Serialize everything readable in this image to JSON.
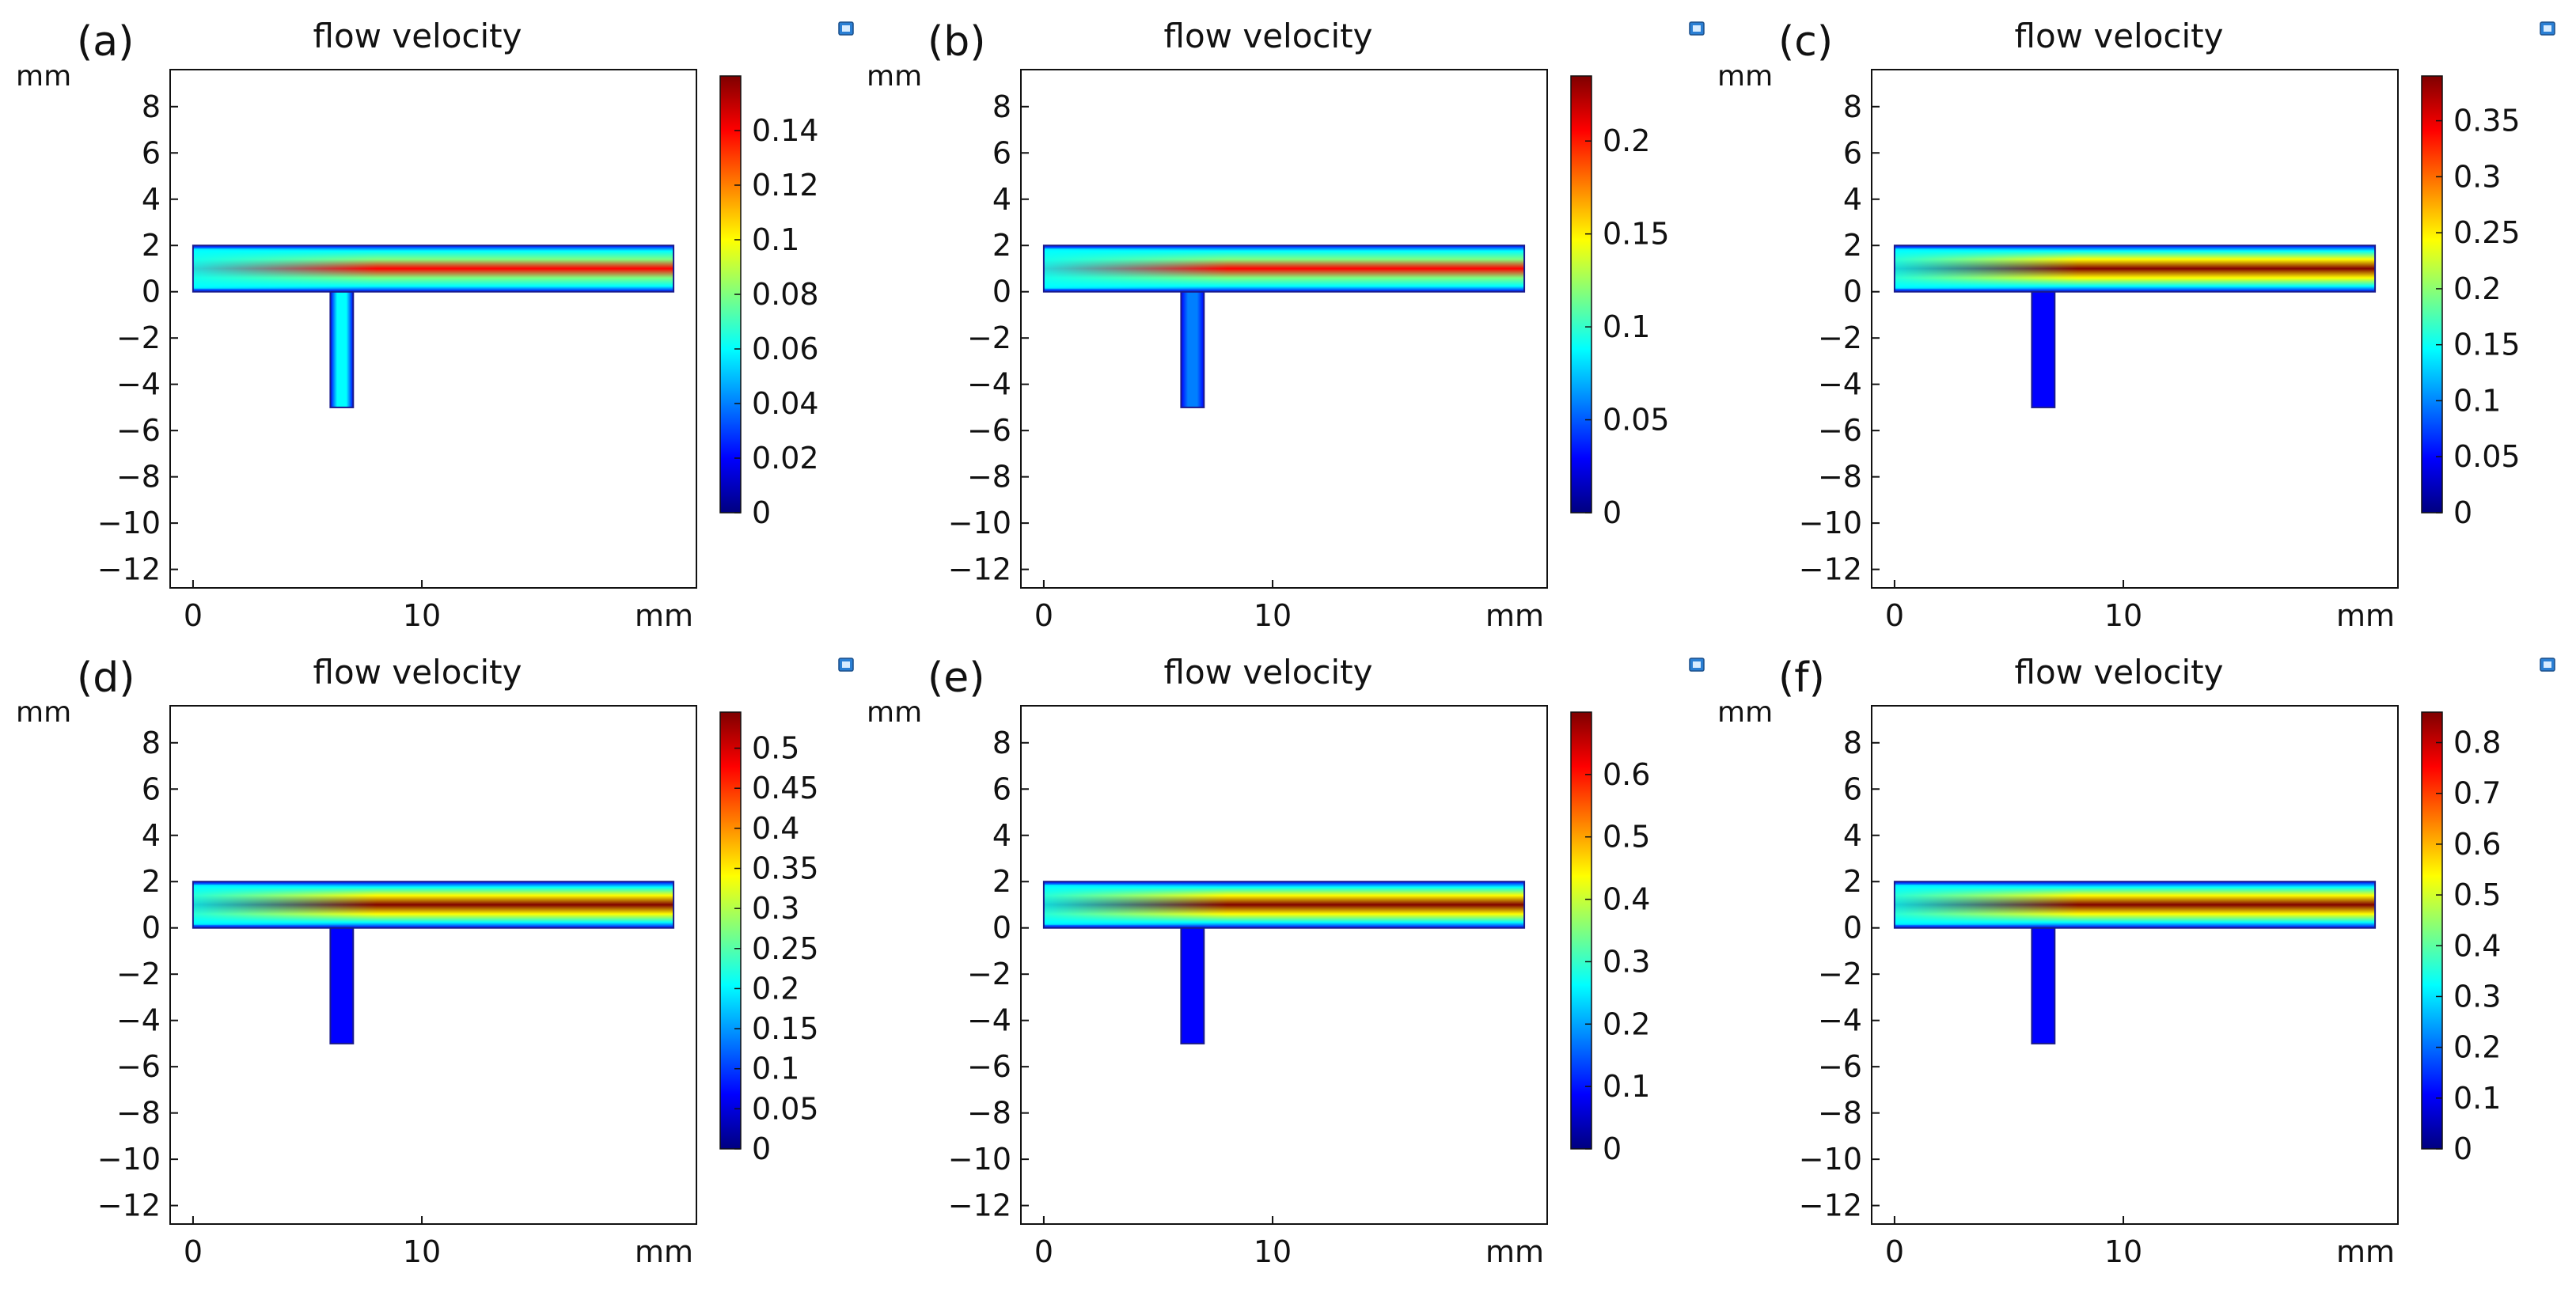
{
  "chart_data": [
    {
      "type": "heatmap",
      "panel_label": "(a)",
      "title": "flow velocity",
      "xlabel": "mm",
      "ylabel": "mm",
      "xticks": [
        "0",
        "10"
      ],
      "yticks": [
        "8",
        "6",
        "4",
        "2",
        "0",
        "−2",
        "−4",
        "−6",
        "−8",
        "−10",
        "−12"
      ],
      "xlim": [
        -1,
        22
      ],
      "ylim": [
        -12.8,
        9.6
      ],
      "colorbar": {
        "min": 0,
        "max": 0.16,
        "ticks": [
          "0",
          "0.02",
          "0.04",
          "0.06",
          "0.08",
          "0.1",
          "0.12",
          "0.14"
        ],
        "tick_values": [
          0,
          0.02,
          0.04,
          0.06,
          0.08,
          0.1,
          0.12,
          0.14
        ]
      },
      "geometry": {
        "main_channel": {
          "x": [
            0,
            21
          ],
          "y": [
            0,
            2
          ]
        },
        "side_channel": {
          "x": [
            6,
            7
          ],
          "y": [
            -5,
            0
          ]
        }
      },
      "peak_velocity": 0.16
    },
    {
      "type": "heatmap",
      "panel_label": "(b)",
      "title": "flow velocity",
      "xlabel": "mm",
      "ylabel": "mm",
      "xticks": [
        "0",
        "10"
      ],
      "yticks": [
        "8",
        "6",
        "4",
        "2",
        "0",
        "−2",
        "−4",
        "−6",
        "−8",
        "−10",
        "−12"
      ],
      "xlim": [
        -1,
        22
      ],
      "ylim": [
        -12.8,
        9.6
      ],
      "colorbar": {
        "min": 0,
        "max": 0.235,
        "ticks": [
          "0",
          "0.05",
          "0.1",
          "0.15",
          "0.2"
        ],
        "tick_values": [
          0,
          0.05,
          0.1,
          0.15,
          0.2
        ]
      },
      "geometry": {
        "main_channel": {
          "x": [
            0,
            21
          ],
          "y": [
            0,
            2
          ]
        },
        "side_channel": {
          "x": [
            6,
            7
          ],
          "y": [
            -5,
            0
          ]
        }
      },
      "peak_velocity": 0.235
    },
    {
      "type": "heatmap",
      "panel_label": "(c)",
      "title": "flow velocity",
      "xlabel": "mm",
      "ylabel": "mm",
      "xticks": [
        "0",
        "10"
      ],
      "yticks": [
        "8",
        "6",
        "4",
        "2",
        "0",
        "−2",
        "−4",
        "−6",
        "−8",
        "−10",
        "−12"
      ],
      "xlim": [
        -1,
        22
      ],
      "ylim": [
        -12.8,
        9.6
      ],
      "colorbar": {
        "min": 0,
        "max": 0.39,
        "ticks": [
          "0",
          "0.05",
          "0.1",
          "0.15",
          "0.2",
          "0.25",
          "0.3",
          "0.35"
        ],
        "tick_values": [
          0,
          0.05,
          0.1,
          0.15,
          0.2,
          0.25,
          0.3,
          0.35
        ]
      },
      "geometry": {
        "main_channel": {
          "x": [
            0,
            21
          ],
          "y": [
            0,
            2
          ]
        },
        "side_channel": {
          "x": [
            6,
            7
          ],
          "y": [
            -5,
            0
          ]
        }
      },
      "peak_velocity": 0.39
    },
    {
      "type": "heatmap",
      "panel_label": "(d)",
      "title": "flow velocity",
      "xlabel": "mm",
      "ylabel": "mm",
      "xticks": [
        "0",
        "10"
      ],
      "yticks": [
        "8",
        "6",
        "4",
        "2",
        "0",
        "−2",
        "−4",
        "−6",
        "−8",
        "−10",
        "−12"
      ],
      "xlim": [
        -1,
        22
      ],
      "ylim": [
        -12.8,
        9.6
      ],
      "colorbar": {
        "min": 0,
        "max": 0.545,
        "ticks": [
          "0",
          "0.05",
          "0.1",
          "0.15",
          "0.2",
          "0.25",
          "0.3",
          "0.35",
          "0.4",
          "0.45",
          "0.5"
        ],
        "tick_values": [
          0,
          0.05,
          0.1,
          0.15,
          0.2,
          0.25,
          0.3,
          0.35,
          0.4,
          0.45,
          0.5
        ]
      },
      "geometry": {
        "main_channel": {
          "x": [
            0,
            21
          ],
          "y": [
            0,
            2
          ]
        },
        "side_channel": {
          "x": [
            6,
            7
          ],
          "y": [
            -5,
            0
          ]
        }
      },
      "peak_velocity": 0.545
    },
    {
      "type": "heatmap",
      "panel_label": "(e)",
      "title": "flow velocity",
      "xlabel": "mm",
      "ylabel": "mm",
      "xticks": [
        "0",
        "10"
      ],
      "yticks": [
        "8",
        "6",
        "4",
        "2",
        "0",
        "−2",
        "−4",
        "−6",
        "−8",
        "−10",
        "−12"
      ],
      "xlim": [
        -1,
        22
      ],
      "ylim": [
        -12.8,
        9.6
      ],
      "colorbar": {
        "min": 0,
        "max": 0.7,
        "ticks": [
          "0",
          "0.1",
          "0.2",
          "0.3",
          "0.4",
          "0.5",
          "0.6"
        ],
        "tick_values": [
          0,
          0.1,
          0.2,
          0.3,
          0.4,
          0.5,
          0.6
        ]
      },
      "geometry": {
        "main_channel": {
          "x": [
            0,
            21
          ],
          "y": [
            0,
            2
          ]
        },
        "side_channel": {
          "x": [
            6,
            7
          ],
          "y": [
            -5,
            0
          ]
        }
      },
      "peak_velocity": 0.7
    },
    {
      "type": "heatmap",
      "panel_label": "(f)",
      "title": "flow velocity",
      "xlabel": "mm",
      "ylabel": "mm",
      "xticks": [
        "0",
        "10"
      ],
      "yticks": [
        "8",
        "6",
        "4",
        "2",
        "0",
        "−2",
        "−4",
        "−6",
        "−8",
        "−10",
        "−12"
      ],
      "xlim": [
        -1,
        22
      ],
      "ylim": [
        -12.8,
        9.6
      ],
      "colorbar": {
        "min": 0,
        "max": 0.86,
        "ticks": [
          "0",
          "0.1",
          "0.2",
          "0.3",
          "0.4",
          "0.5",
          "0.6",
          "0.7",
          "0.8"
        ],
        "tick_values": [
          0,
          0.1,
          0.2,
          0.3,
          0.4,
          0.5,
          0.6,
          0.7,
          0.8
        ]
      },
      "geometry": {
        "main_channel": {
          "x": [
            0,
            21
          ],
          "y": [
            0,
            2
          ]
        },
        "side_channel": {
          "x": [
            6,
            7
          ],
          "y": [
            -5,
            0
          ]
        }
      },
      "peak_velocity": 0.86
    }
  ],
  "colors": {
    "jet": [
      "#00007f",
      "#0000ff",
      "#007fff",
      "#00ffff",
      "#7fff7f",
      "#ffff00",
      "#ff7f00",
      "#ff0000",
      "#7f0000"
    ],
    "wall": "#1a1a8c",
    "axis": "#111111"
  }
}
